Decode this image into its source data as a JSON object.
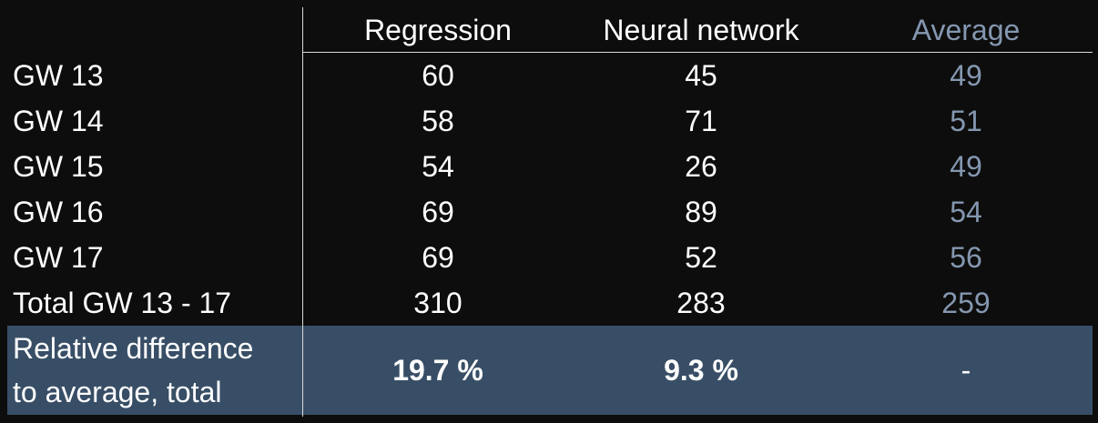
{
  "columns": [
    "Regression",
    "Neural network",
    "Average"
  ],
  "rows": [
    {
      "label": "GW 13",
      "regression": "60",
      "neural": "45",
      "average": "49"
    },
    {
      "label": "GW 14",
      "regression": "58",
      "neural": "71",
      "average": "51"
    },
    {
      "label": "GW 15",
      "regression": "54",
      "neural": "26",
      "average": "49"
    },
    {
      "label": "GW 16",
      "regression": "69",
      "neural": "89",
      "average": "54"
    },
    {
      "label": "GW 17",
      "regression": "69",
      "neural": "52",
      "average": "56"
    },
    {
      "label": "Total GW 13 - 17",
      "regression": "310",
      "neural": "283",
      "average": "259"
    }
  ],
  "summary": {
    "label_line1": "Relative difference",
    "label_line2": "to average, total",
    "regression": "19.7 %",
    "neural": "9.3 %",
    "average": "-"
  },
  "colors": {
    "background": "#0d0d0d",
    "highlight_row": "#384e66",
    "average_text": "#8497b0",
    "rule": "#d9d9d9"
  }
}
